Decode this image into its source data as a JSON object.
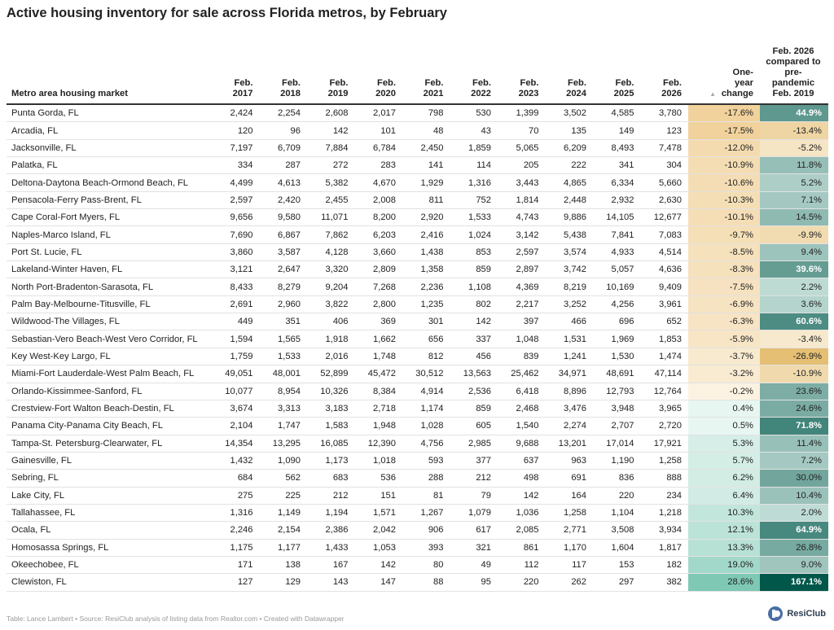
{
  "title": "Active housing inventory for sale across Florida metros, by February",
  "table": {
    "columns": [
      "Metro area housing market",
      "Feb. 2017",
      "Feb. 2018",
      "Feb. 2019",
      "Feb. 2020",
      "Feb. 2021",
      "Feb. 2022",
      "Feb. 2023",
      "Feb. 2024",
      "Feb. 2025",
      "Feb. 2026",
      "One-year change",
      "Feb. 2026 compared to pre-pandemic Feb. 2019"
    ],
    "rows": [
      [
        "Punta Gorda, FL",
        "2,424",
        "2,254",
        "2,608",
        "2,017",
        "798",
        "530",
        "1,399",
        "3,502",
        "4,585",
        "3,780",
        "-17.6%",
        "44.9%"
      ],
      [
        "Arcadia, FL",
        "120",
        "96",
        "142",
        "101",
        "48",
        "43",
        "70",
        "135",
        "149",
        "123",
        "-17.5%",
        "-13.4%"
      ],
      [
        "Jacksonville, FL",
        "7,197",
        "6,709",
        "7,884",
        "6,784",
        "2,450",
        "1,859",
        "5,065",
        "6,209",
        "8,493",
        "7,478",
        "-12.0%",
        "-5.2%"
      ],
      [
        "Palatka, FL",
        "334",
        "287",
        "272",
        "283",
        "141",
        "114",
        "205",
        "222",
        "341",
        "304",
        "-10.9%",
        "11.8%"
      ],
      [
        "Deltona-Daytona Beach-Ormond Beach, FL",
        "4,499",
        "4,613",
        "5,382",
        "4,670",
        "1,929",
        "1,316",
        "3,443",
        "4,865",
        "6,334",
        "5,660",
        "-10.6%",
        "5.2%"
      ],
      [
        "Pensacola-Ferry Pass-Brent, FL",
        "2,597",
        "2,420",
        "2,455",
        "2,008",
        "811",
        "752",
        "1,814",
        "2,448",
        "2,932",
        "2,630",
        "-10.3%",
        "7.1%"
      ],
      [
        "Cape Coral-Fort Myers, FL",
        "9,656",
        "9,580",
        "11,071",
        "8,200",
        "2,920",
        "1,533",
        "4,743",
        "9,886",
        "14,105",
        "12,677",
        "-10.1%",
        "14.5%"
      ],
      [
        "Naples-Marco Island, FL",
        "7,690",
        "6,867",
        "7,862",
        "6,203",
        "2,416",
        "1,024",
        "3,142",
        "5,438",
        "7,841",
        "7,083",
        "-9.7%",
        "-9.9%"
      ],
      [
        "Port St. Lucie, FL",
        "3,860",
        "3,587",
        "4,128",
        "3,660",
        "1,438",
        "853",
        "2,597",
        "3,574",
        "4,933",
        "4,514",
        "-8.5%",
        "9.4%"
      ],
      [
        "Lakeland-Winter Haven, FL",
        "3,121",
        "2,647",
        "3,320",
        "2,809",
        "1,358",
        "859",
        "2,897",
        "3,742",
        "5,057",
        "4,636",
        "-8.3%",
        "39.6%"
      ],
      [
        "North Port-Bradenton-Sarasota, FL",
        "8,433",
        "8,279",
        "9,204",
        "7,268",
        "2,236",
        "1,108",
        "4,369",
        "8,219",
        "10,169",
        "9,409",
        "-7.5%",
        "2.2%"
      ],
      [
        "Palm Bay-Melbourne-Titusville, FL",
        "2,691",
        "2,960",
        "3,822",
        "2,800",
        "1,235",
        "802",
        "2,217",
        "3,252",
        "4,256",
        "3,961",
        "-6.9%",
        "3.6%"
      ],
      [
        "Wildwood-The Villages, FL",
        "449",
        "351",
        "406",
        "369",
        "301",
        "142",
        "397",
        "466",
        "696",
        "652",
        "-6.3%",
        "60.6%"
      ],
      [
        "Sebastian-Vero Beach-West Vero Corridor, FL",
        "1,594",
        "1,565",
        "1,918",
        "1,662",
        "656",
        "337",
        "1,048",
        "1,531",
        "1,969",
        "1,853",
        "-5.9%",
        "-3.4%"
      ],
      [
        "Key West-Key Largo, FL",
        "1,759",
        "1,533",
        "2,016",
        "1,748",
        "812",
        "456",
        "839",
        "1,241",
        "1,530",
        "1,474",
        "-3.7%",
        "-26.9%"
      ],
      [
        "Miami-Fort Lauderdale-West Palm Beach, FL",
        "49,051",
        "48,001",
        "52,899",
        "45,472",
        "30,512",
        "13,563",
        "25,462",
        "34,971",
        "48,691",
        "47,114",
        "-3.2%",
        "-10.9%"
      ],
      [
        "Orlando-Kissimmee-Sanford, FL",
        "10,077",
        "8,954",
        "10,326",
        "8,384",
        "4,914",
        "2,536",
        "6,418",
        "8,896",
        "12,793",
        "12,764",
        "-0.2%",
        "23.6%"
      ],
      [
        "Crestview-Fort Walton Beach-Destin, FL",
        "3,674",
        "3,313",
        "3,183",
        "2,718",
        "1,174",
        "859",
        "2,468",
        "3,476",
        "3,948",
        "3,965",
        "0.4%",
        "24.6%"
      ],
      [
        "Panama City-Panama City Beach, FL",
        "2,104",
        "1,747",
        "1,583",
        "1,948",
        "1,028",
        "605",
        "1,540",
        "2,274",
        "2,707",
        "2,720",
        "0.5%",
        "71.8%"
      ],
      [
        "Tampa-St. Petersburg-Clearwater, FL",
        "14,354",
        "13,295",
        "16,085",
        "12,390",
        "4,756",
        "2,985",
        "9,688",
        "13,201",
        "17,014",
        "17,921",
        "5.3%",
        "11.4%"
      ],
      [
        "Gainesville, FL",
        "1,432",
        "1,090",
        "1,173",
        "1,018",
        "593",
        "377",
        "637",
        "963",
        "1,190",
        "1,258",
        "5.7%",
        "7.2%"
      ],
      [
        "Sebring, FL",
        "684",
        "562",
        "683",
        "536",
        "288",
        "212",
        "498",
        "691",
        "836",
        "888",
        "6.2%",
        "30.0%"
      ],
      [
        "Lake City, FL",
        "275",
        "225",
        "212",
        "151",
        "81",
        "79",
        "142",
        "164",
        "220",
        "234",
        "6.4%",
        "10.4%"
      ],
      [
        "Tallahassee, FL",
        "1,316",
        "1,149",
        "1,194",
        "1,571",
        "1,267",
        "1,079",
        "1,036",
        "1,258",
        "1,104",
        "1,218",
        "10.3%",
        "2.0%"
      ],
      [
        "Ocala, FL",
        "2,246",
        "2,154",
        "2,386",
        "2,042",
        "906",
        "617",
        "2,085",
        "2,771",
        "3,508",
        "3,934",
        "12.1%",
        "64.9%"
      ],
      [
        "Homosassa Springs, FL",
        "1,175",
        "1,177",
        "1,433",
        "1,053",
        "393",
        "321",
        "861",
        "1,170",
        "1,604",
        "1,817",
        "13.3%",
        "26.8%"
      ],
      [
        "Okeechobee, FL",
        "171",
        "138",
        "167",
        "142",
        "80",
        "49",
        "112",
        "117",
        "153",
        "182",
        "19.0%",
        "9.0%"
      ],
      [
        "Clewiston, FL",
        "127",
        "129",
        "143",
        "147",
        "88",
        "95",
        "220",
        "262",
        "297",
        "382",
        "28.6%",
        "167.1%"
      ]
    ]
  },
  "footer": "Table: Lance Lambert • Source: ResiClub analysis of listing data from Realtor.com • Created with Datawrapper",
  "logo": "ResiClub"
}
